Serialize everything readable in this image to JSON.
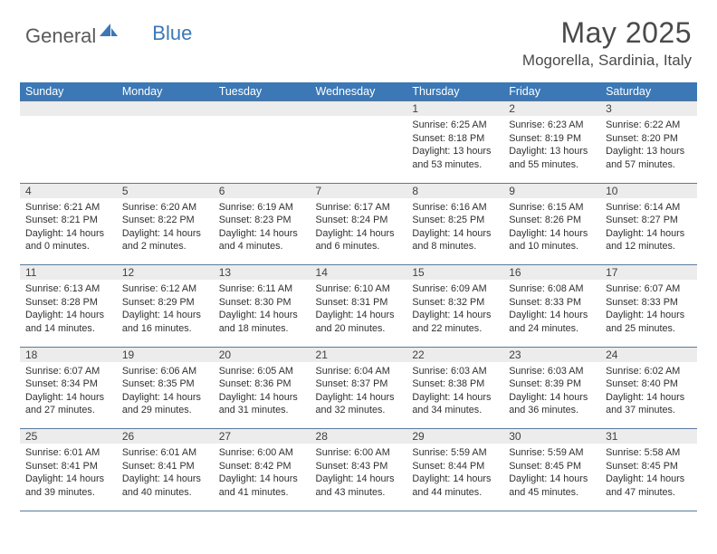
{
  "brand": {
    "part1": "General",
    "part2": "Blue"
  },
  "title": "May 2025",
  "location": "Mogorella, Sardinia, Italy",
  "colors": {
    "header_bg": "#3b78b5",
    "header_text": "#ffffff",
    "daynum_bg": "#ececec",
    "border": "#5a7a9a",
    "body_text": "#303030",
    "title_text": "#4a4a4a"
  },
  "day_headers": [
    "Sunday",
    "Monday",
    "Tuesday",
    "Wednesday",
    "Thursday",
    "Friday",
    "Saturday"
  ],
  "weeks": [
    [
      null,
      null,
      null,
      null,
      {
        "n": "1",
        "sr": "6:25 AM",
        "ss": "8:18 PM",
        "dl": "13 hours and 53 minutes."
      },
      {
        "n": "2",
        "sr": "6:23 AM",
        "ss": "8:19 PM",
        "dl": "13 hours and 55 minutes."
      },
      {
        "n": "3",
        "sr": "6:22 AM",
        "ss": "8:20 PM",
        "dl": "13 hours and 57 minutes."
      }
    ],
    [
      {
        "n": "4",
        "sr": "6:21 AM",
        "ss": "8:21 PM",
        "dl": "14 hours and 0 minutes."
      },
      {
        "n": "5",
        "sr": "6:20 AM",
        "ss": "8:22 PM",
        "dl": "14 hours and 2 minutes."
      },
      {
        "n": "6",
        "sr": "6:19 AM",
        "ss": "8:23 PM",
        "dl": "14 hours and 4 minutes."
      },
      {
        "n": "7",
        "sr": "6:17 AM",
        "ss": "8:24 PM",
        "dl": "14 hours and 6 minutes."
      },
      {
        "n": "8",
        "sr": "6:16 AM",
        "ss": "8:25 PM",
        "dl": "14 hours and 8 minutes."
      },
      {
        "n": "9",
        "sr": "6:15 AM",
        "ss": "8:26 PM",
        "dl": "14 hours and 10 minutes."
      },
      {
        "n": "10",
        "sr": "6:14 AM",
        "ss": "8:27 PM",
        "dl": "14 hours and 12 minutes."
      }
    ],
    [
      {
        "n": "11",
        "sr": "6:13 AM",
        "ss": "8:28 PM",
        "dl": "14 hours and 14 minutes."
      },
      {
        "n": "12",
        "sr": "6:12 AM",
        "ss": "8:29 PM",
        "dl": "14 hours and 16 minutes."
      },
      {
        "n": "13",
        "sr": "6:11 AM",
        "ss": "8:30 PM",
        "dl": "14 hours and 18 minutes."
      },
      {
        "n": "14",
        "sr": "6:10 AM",
        "ss": "8:31 PM",
        "dl": "14 hours and 20 minutes."
      },
      {
        "n": "15",
        "sr": "6:09 AM",
        "ss": "8:32 PM",
        "dl": "14 hours and 22 minutes."
      },
      {
        "n": "16",
        "sr": "6:08 AM",
        "ss": "8:33 PM",
        "dl": "14 hours and 24 minutes."
      },
      {
        "n": "17",
        "sr": "6:07 AM",
        "ss": "8:33 PM",
        "dl": "14 hours and 25 minutes."
      }
    ],
    [
      {
        "n": "18",
        "sr": "6:07 AM",
        "ss": "8:34 PM",
        "dl": "14 hours and 27 minutes."
      },
      {
        "n": "19",
        "sr": "6:06 AM",
        "ss": "8:35 PM",
        "dl": "14 hours and 29 minutes."
      },
      {
        "n": "20",
        "sr": "6:05 AM",
        "ss": "8:36 PM",
        "dl": "14 hours and 31 minutes."
      },
      {
        "n": "21",
        "sr": "6:04 AM",
        "ss": "8:37 PM",
        "dl": "14 hours and 32 minutes."
      },
      {
        "n": "22",
        "sr": "6:03 AM",
        "ss": "8:38 PM",
        "dl": "14 hours and 34 minutes."
      },
      {
        "n": "23",
        "sr": "6:03 AM",
        "ss": "8:39 PM",
        "dl": "14 hours and 36 minutes."
      },
      {
        "n": "24",
        "sr": "6:02 AM",
        "ss": "8:40 PM",
        "dl": "14 hours and 37 minutes."
      }
    ],
    [
      {
        "n": "25",
        "sr": "6:01 AM",
        "ss": "8:41 PM",
        "dl": "14 hours and 39 minutes."
      },
      {
        "n": "26",
        "sr": "6:01 AM",
        "ss": "8:41 PM",
        "dl": "14 hours and 40 minutes."
      },
      {
        "n": "27",
        "sr": "6:00 AM",
        "ss": "8:42 PM",
        "dl": "14 hours and 41 minutes."
      },
      {
        "n": "28",
        "sr": "6:00 AM",
        "ss": "8:43 PM",
        "dl": "14 hours and 43 minutes."
      },
      {
        "n": "29",
        "sr": "5:59 AM",
        "ss": "8:44 PM",
        "dl": "14 hours and 44 minutes."
      },
      {
        "n": "30",
        "sr": "5:59 AM",
        "ss": "8:45 PM",
        "dl": "14 hours and 45 minutes."
      },
      {
        "n": "31",
        "sr": "5:58 AM",
        "ss": "8:45 PM",
        "dl": "14 hours and 47 minutes."
      }
    ]
  ],
  "labels": {
    "sunrise": "Sunrise:",
    "sunset": "Sunset:",
    "daylight": "Daylight:"
  }
}
